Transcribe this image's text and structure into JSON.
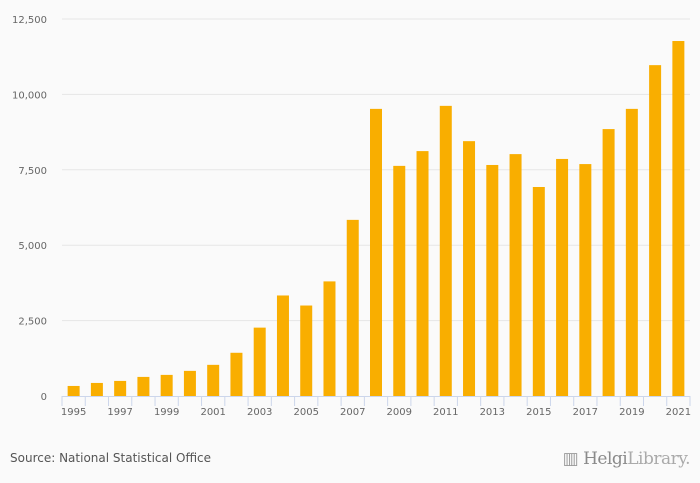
{
  "chart_data": {
    "type": "bar",
    "title": "",
    "xlabel": "",
    "ylabel": "",
    "ylim": [
      0,
      12500
    ],
    "yticks": [
      "0",
      "2,500",
      "5,000",
      "7,500",
      "10,000",
      "12,500"
    ],
    "ytick_values": [
      0,
      2500,
      5000,
      7500,
      10000,
      12500
    ],
    "categories": [
      "1995",
      "1996",
      "1997",
      "1998",
      "1999",
      "2000",
      "2001",
      "2002",
      "2003",
      "2004",
      "2005",
      "2006",
      "2007",
      "2008",
      "2009",
      "2010",
      "2011",
      "2012",
      "2013",
      "2014",
      "2015",
      "2016",
      "2017",
      "2018",
      "2019",
      "2020",
      "2021"
    ],
    "values": [
      333,
      433,
      500,
      633,
      700,
      833,
      1033,
      1433,
      2267,
      3333,
      3000,
      3800,
      5840,
      9520,
      7630,
      8120,
      9620,
      8450,
      7660,
      8020,
      6930,
      7860,
      7690,
      8850,
      9520,
      10970,
      11770
    ],
    "bar_color": "#f9ae00",
    "grid": true,
    "legend": "none"
  },
  "footer": {
    "source": "Source: National Statistical Office",
    "logo_text": "HelgiLibrary"
  }
}
